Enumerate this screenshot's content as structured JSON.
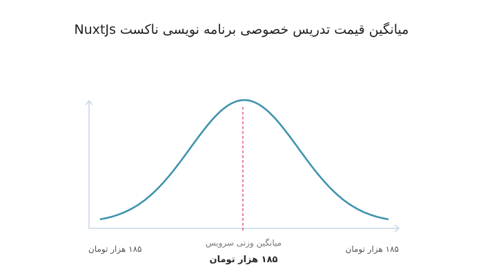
{
  "title": "میانگین قیمت تدریس خصوصی برنامه نویسی ناکست NuxtJs",
  "chart_data": {
    "type": "line",
    "title": "میانگین قیمت تدریس خصوصی برنامه نویسی ناکست NuxtJs",
    "description_shape": "bell-curve",
    "x": [
      -1,
      0,
      1
    ],
    "series": [
      {
        "values": [
          0.03,
          1.0,
          0.03
        ]
      }
    ],
    "x_tick_labels": {
      "left": "۱۸۵ هزار تومان",
      "right": "۱۸۵ هزار تومان"
    },
    "average_label": "میانگین وزنی سرویس",
    "average_value": "۱۸۵ هزار تومان",
    "colors": {
      "curve": "#3f93ad",
      "average_line": "#e0506e",
      "axis": "#c9d9e6"
    },
    "grid": false
  }
}
